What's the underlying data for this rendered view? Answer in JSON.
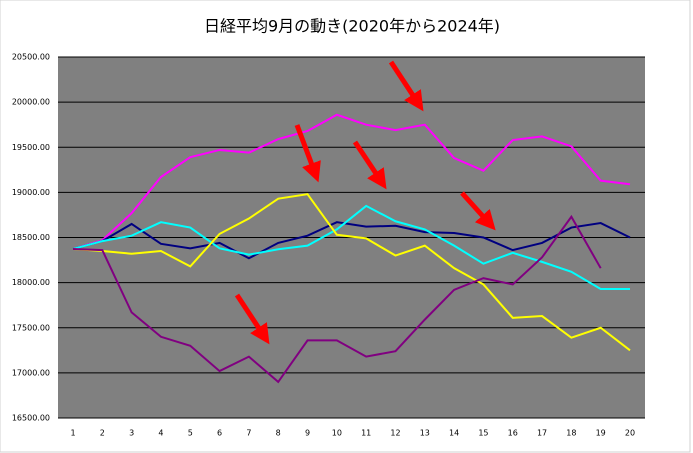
{
  "chart_data": {
    "type": "line",
    "title": "日経平均9月の動き(2020年から2024年)",
    "categories": [
      "1",
      "2",
      "3",
      "4",
      "5",
      "6",
      "7",
      "8",
      "9",
      "10",
      "11",
      "12",
      "13",
      "14",
      "15",
      "16",
      "17",
      "18",
      "19",
      "20"
    ],
    "ylim": [
      16500,
      20500
    ],
    "yticks": [
      {
        "value": 16500,
        "label": "16500.00"
      },
      {
        "value": 17000,
        "label": "17000.00"
      },
      {
        "value": 17500,
        "label": "17500.00"
      },
      {
        "value": 18000,
        "label": "18000.00"
      },
      {
        "value": 18500,
        "label": "18500.00"
      },
      {
        "value": 19000,
        "label": "19000.00"
      },
      {
        "value": 19500,
        "label": "19500.00"
      },
      {
        "value": 20000,
        "label": "20000.00"
      },
      {
        "value": 20500,
        "label": "20500.00"
      }
    ],
    "grid": true,
    "series": [
      {
        "color": "#ff00ff",
        "values": [
          18373,
          18470,
          18770,
          19170,
          19390,
          19470,
          19440,
          19590,
          19680,
          19860,
          19750,
          19690,
          19750,
          19380,
          19240,
          19580,
          19620,
          19510,
          19130,
          19090
        ]
      },
      {
        "color": "#000080",
        "values": [
          18373,
          18460,
          18650,
          18430,
          18380,
          18440,
          18270,
          18440,
          18520,
          18670,
          18620,
          18630,
          18560,
          18550,
          18500,
          18360,
          18440,
          18610,
          18660,
          18500
        ]
      },
      {
        "color": "#00ffff",
        "values": [
          18373,
          18460,
          18520,
          18670,
          18610,
          18380,
          18310,
          18370,
          18410,
          18590,
          18850,
          18680,
          18590,
          18410,
          18210,
          18330,
          18230,
          18120,
          17930,
          17930
        ]
      },
      {
        "color": "#ffff00",
        "values": [
          18373,
          18350,
          18320,
          18350,
          18180,
          18540,
          18710,
          18930,
          18980,
          18530,
          18490,
          18300,
          18410,
          18160,
          17980,
          17610,
          17630,
          17390,
          17500,
          17250
        ]
      },
      {
        "color": "#800080",
        "values": [
          18373,
          18360,
          17670,
          17400,
          17300,
          17020,
          17180,
          16900,
          17360,
          17360,
          17180,
          17240,
          17590,
          17920,
          18050,
          17980,
          18280,
          18730,
          18160,
          null
        ]
      }
    ]
  }
}
